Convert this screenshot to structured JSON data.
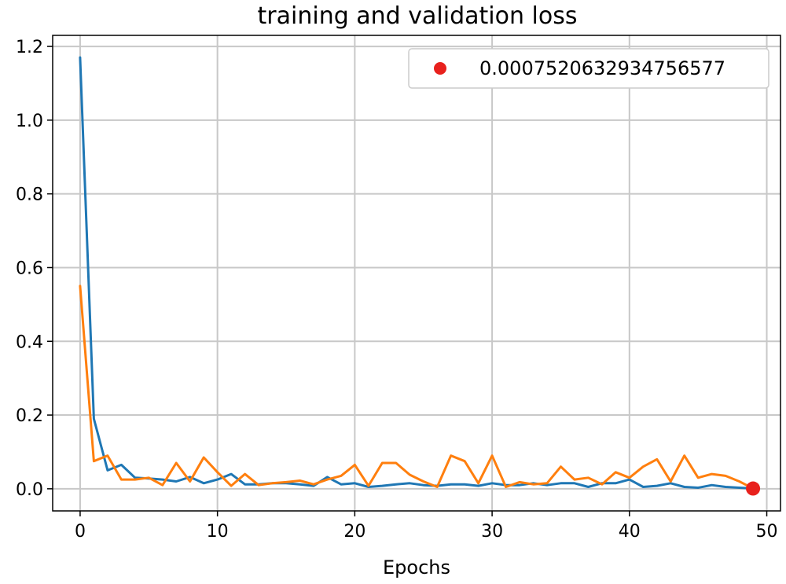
{
  "chart_data": {
    "type": "line",
    "title": "training and validation loss",
    "xlabel": "Epochs",
    "ylabel": "",
    "xlim": [
      -2,
      51
    ],
    "ylim": [
      -0.06,
      1.23
    ],
    "xticks": [
      0,
      10,
      20,
      30,
      40,
      50
    ],
    "yticks": [
      0.0,
      0.2,
      0.4,
      0.6,
      0.8,
      1.0,
      1.2
    ],
    "grid": true,
    "legend_position": "top-right",
    "colors": {
      "series_1": "#1f77b4",
      "series_2": "#ff7f0e",
      "marker": "#e8211d"
    },
    "series": [
      {
        "values": [
          1.17,
          0.19,
          0.05,
          0.065,
          0.03,
          0.028,
          0.025,
          0.02,
          0.032,
          0.015,
          0.025,
          0.04,
          0.012,
          0.012,
          0.015,
          0.015,
          0.012,
          0.008,
          0.032,
          0.012,
          0.015,
          0.005,
          0.008,
          0.012,
          0.015,
          0.01,
          0.008,
          0.012,
          0.012,
          0.008,
          0.015,
          0.01,
          0.01,
          0.015,
          0.01,
          0.015,
          0.015,
          0.005,
          0.015,
          0.015,
          0.025,
          0.005,
          0.008,
          0.015,
          0.005,
          0.003,
          0.01,
          0.005,
          0.003,
          0.001
        ]
      },
      {
        "values": [
          0.55,
          0.075,
          0.09,
          0.025,
          0.025,
          0.03,
          0.01,
          0.07,
          0.02,
          0.085,
          0.045,
          0.008,
          0.04,
          0.01,
          0.015,
          0.018,
          0.022,
          0.012,
          0.025,
          0.035,
          0.065,
          0.008,
          0.07,
          0.07,
          0.038,
          0.02,
          0.005,
          0.09,
          0.075,
          0.015,
          0.09,
          0.005,
          0.018,
          0.012,
          0.015,
          0.06,
          0.025,
          0.03,
          0.012,
          0.045,
          0.03,
          0.06,
          0.08,
          0.02,
          0.09,
          0.03,
          0.04,
          0.035,
          0.02,
          0.001
        ]
      }
    ],
    "marker": {
      "x": 49,
      "y": 0.0007520632934756577,
      "label": "0.0007520632934756577"
    }
  }
}
